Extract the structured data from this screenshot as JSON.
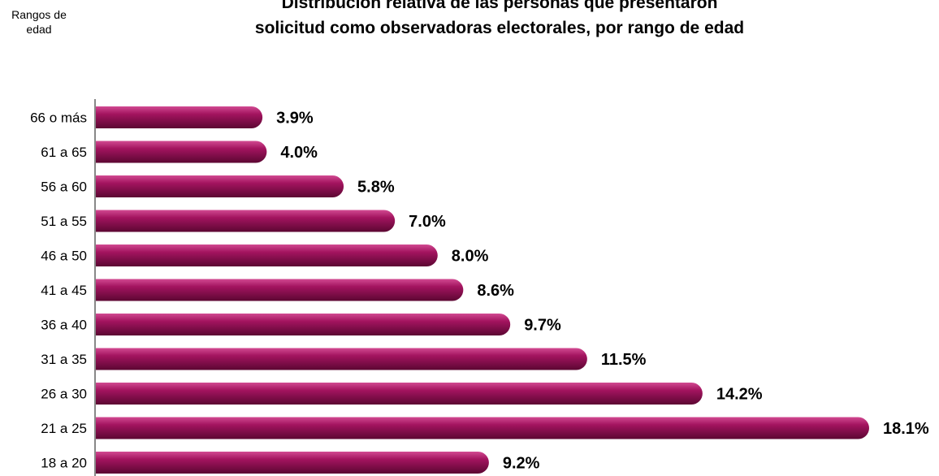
{
  "chart_data": {
    "type": "bar",
    "orientation": "horizontal",
    "title": "Distribución relativa de las personas que presentaron\nsolicitud como observadoras electorales, por rango de edad",
    "ylabel": "Rangos de\nedad",
    "xlabel": "",
    "categories": [
      "66 o más",
      "61 a 65",
      "56 a 60",
      "51 a 55",
      "46 a 50",
      "41 a 45",
      "36 a 40",
      "31 a 35",
      "26 a 30",
      "21 a 25",
      "18 a 20"
    ],
    "values": [
      3.9,
      4.0,
      5.8,
      7.0,
      8.0,
      8.6,
      9.7,
      11.5,
      14.2,
      18.1,
      9.2
    ],
    "value_labels": [
      "3.9%",
      "4.0%",
      "5.8%",
      "7.0%",
      "8.0%",
      "8.6%",
      "9.7%",
      "11.5%",
      "14.2%",
      "18.1%",
      "9.2%"
    ],
    "unit": "%",
    "xlim": [
      0,
      18.1
    ],
    "grid": false,
    "bar_color": "#a3145f"
  }
}
